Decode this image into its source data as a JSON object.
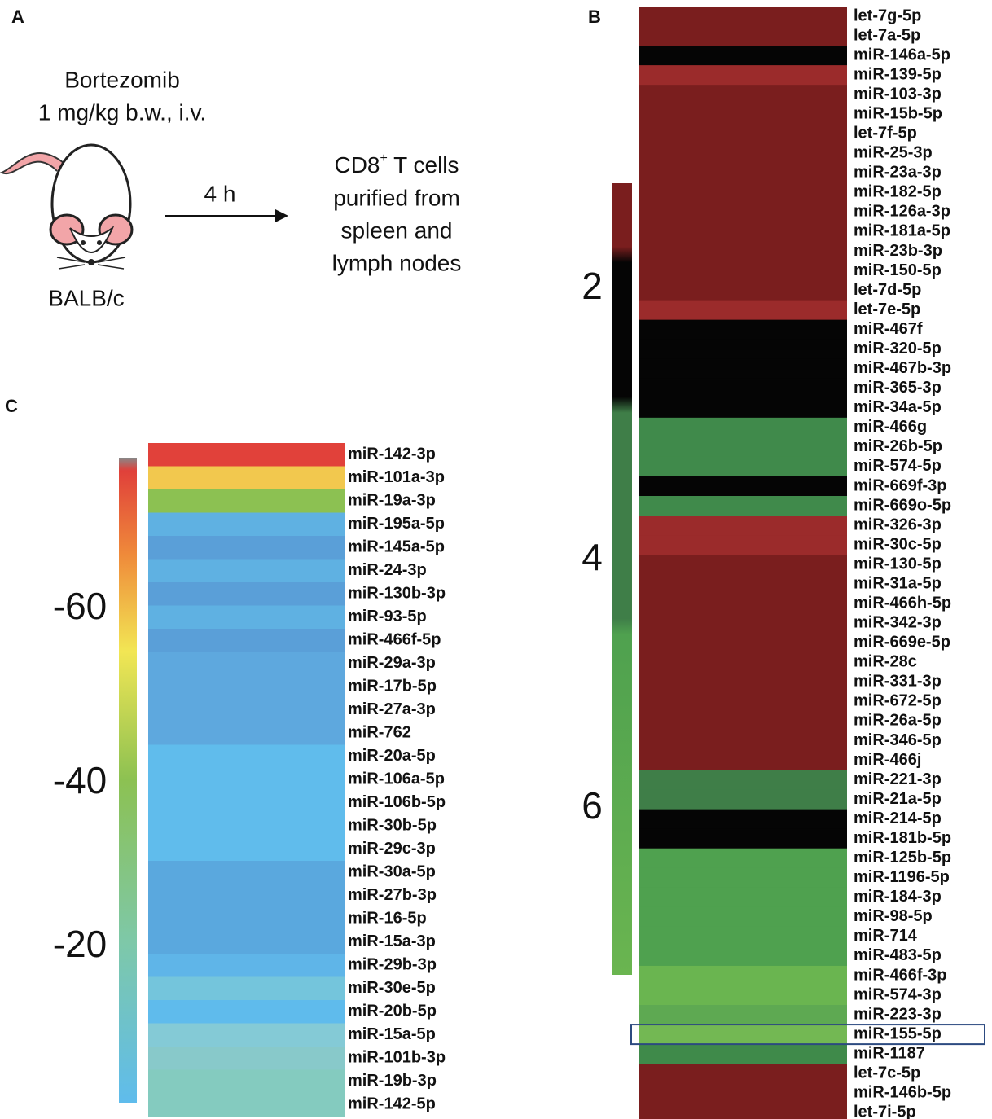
{
  "panel_a": {
    "label": "A",
    "treatment": [
      "Bortezomib",
      "1 mg/kg b.w., i.v."
    ],
    "strain": "BALB/c",
    "time": "4 h",
    "result": {
      "cell": "CD8",
      "superscript": "+",
      "rest": " T cells",
      "lines": [
        "purified from",
        "spleen and",
        "lymph nodes"
      ]
    }
  },
  "panel_b": {
    "label": "B",
    "colorbar_ticks": [
      2,
      4,
      6
    ],
    "names": [
      "let-7g-5p",
      "let-7a-5p",
      "miR-146a-5p",
      "miR-139-5p",
      "miR-103-3p",
      "miR-15b-5p",
      "let-7f-5p",
      "miR-25-3p",
      "miR-23a-3p",
      "miR-182-5p",
      "miR-126a-3p",
      "miR-181a-5p",
      "miR-23b-3p",
      "miR-150-5p",
      "let-7d-5p",
      "let-7e-5p",
      "miR-467f",
      "miR-320-5p",
      "miR-467b-3p",
      "miR-365-3p",
      "miR-34a-5p",
      "miR-466g",
      "miR-26b-5p",
      "miR-574-5p",
      "miR-669f-3p",
      "miR-669o-5p",
      "miR-326-3p",
      "miR-30c-5p",
      "miR-130-5p",
      "miR-31a-5p",
      "miR-466h-5p",
      "miR-342-3p",
      "miR-669e-5p",
      "miR-28c",
      "miR-331-3p",
      "miR-672-5p",
      "miR-26a-5p",
      "miR-346-5p",
      "miR-466j",
      "miR-221-3p",
      "miR-21a-5p",
      "miR-214-5p",
      "miR-181b-5p",
      "miR-125b-5p",
      "miR-1196-5p",
      "miR-184-3p",
      "miR-98-5p",
      "miR-714",
      "miR-483-5p",
      "miR-466f-3p",
      "miR-574-3p",
      "miR-223-3p",
      "miR-155-5p",
      "miR-1187",
      "let-7c-5p",
      "miR-146b-5p",
      "let-7i-5p"
    ],
    "colors": [
      "#7a1e1e",
      "#7a1e1e",
      "#050505",
      "#9b2b2b",
      "#7a1e1e",
      "#7a1e1e",
      "#7a1e1e",
      "#7a1e1e",
      "#7a1e1e",
      "#7a1e1e",
      "#7a1e1e",
      "#7a1e1e",
      "#7a1e1e",
      "#7a1e1e",
      "#7a1e1e",
      "#9b2b2b",
      "#050505",
      "#050505",
      "#050505",
      "#050505",
      "#050505",
      "#408a4b",
      "#408a4b",
      "#408a4b",
      "#050505",
      "#408a4b",
      "#9b2b2b",
      "#9b2b2b",
      "#7a1e1e",
      "#7a1e1e",
      "#7a1e1e",
      "#7a1e1e",
      "#7a1e1e",
      "#7a1e1e",
      "#7a1e1e",
      "#7a1e1e",
      "#7a1e1e",
      "#7a1e1e",
      "#7a1e1e",
      "#3f7e48",
      "#3f7e48",
      "#050505",
      "#050505",
      "#4fa14f",
      "#4fa14f",
      "#4fa14f",
      "#4fa14f",
      "#4fa14f",
      "#4fa14f",
      "#6ab550",
      "#6ab550",
      "#5ea952",
      "#73b853",
      "#3f8a4a",
      "#7a1e1e",
      "#7a1e1e",
      "#7a1e1e"
    ],
    "highlight": 52
  },
  "panel_c": {
    "label": "C",
    "colorbar_ticks": [
      -60,
      -40,
      -20
    ],
    "names": [
      "miR-142-3p",
      "miR-101a-3p",
      "miR-19a-3p",
      "miR-195a-5p",
      "miR-145a-5p",
      "miR-24-3p",
      "miR-130b-3p",
      "miR-93-5p",
      "miR-466f-5p",
      "miR-29a-3p",
      "miR-17b-5p",
      "miR-27a-3p",
      "miR-762",
      "miR-20a-5p",
      "miR-106a-5p",
      "miR-106b-5p",
      "miR-30b-5p",
      "miR-29c-3p",
      "miR-30a-5p",
      "miR-27b-3p",
      "miR-16-5p",
      "miR-15a-3p",
      "miR-29b-3p",
      "miR-30e-5p",
      "miR-20b-5p",
      "miR-15a-5p",
      "miR-101b-3p",
      "miR-19b-3p",
      "miR-142-5p"
    ],
    "colors": [
      "#e1413a",
      "#f2c84e",
      "#8cc152",
      "#5fb1e2",
      "#5a9fd8",
      "#5fb1e2",
      "#5a9fd8",
      "#5fb1e2",
      "#5a9fd8",
      "#5ea8de",
      "#5ea8de",
      "#5ea8de",
      "#5ea8de",
      "#60bcec",
      "#60bcec",
      "#60bcec",
      "#60bcec",
      "#60bcec",
      "#5aa8de",
      "#5aa8de",
      "#5aa8de",
      "#5aa8de",
      "#5fb5e8",
      "#74c5dc",
      "#5fbbec",
      "#84cad6",
      "#88c9ca",
      "#84cbbf",
      "#84cbbf"
    ]
  }
}
